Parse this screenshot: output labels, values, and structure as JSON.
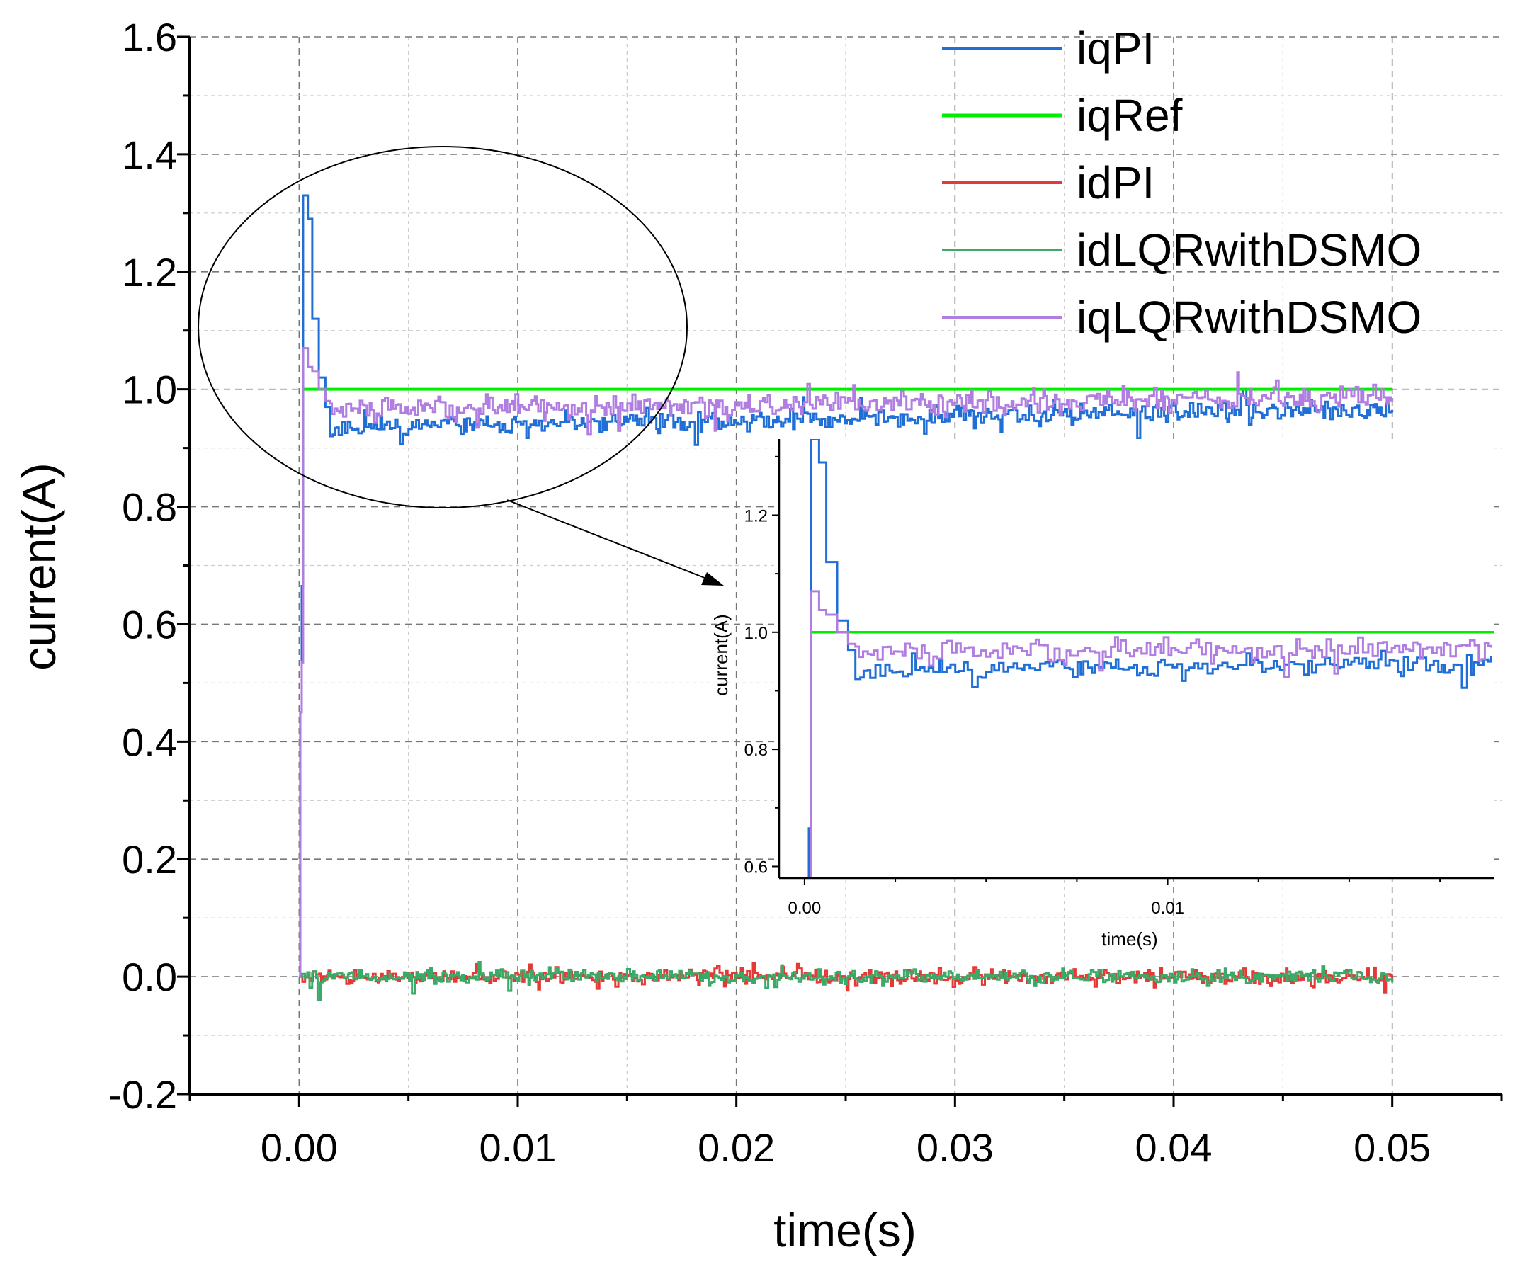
{
  "chart_data": [
    {
      "type": "line",
      "name": "main",
      "xlabel": "time(s)",
      "ylabel": "current(A)",
      "xlim": [
        -0.005,
        0.055
      ],
      "ylim": [
        -0.2,
        1.6
      ],
      "xticks": [
        "0.00",
        "0.01",
        "0.02",
        "0.03",
        "0.04",
        "0.05"
      ],
      "xtick_values": [
        0.0,
        0.01,
        0.02,
        0.03,
        0.04,
        0.05
      ],
      "yticks": [
        "-0.2",
        "0.0",
        "0.2",
        "0.4",
        "0.6",
        "0.8",
        "1.0",
        "1.2",
        "1.4",
        "1.6"
      ],
      "ytick_values": [
        -0.2,
        0.0,
        0.2,
        0.4,
        0.6,
        0.8,
        1.0,
        1.2,
        1.4,
        1.6
      ],
      "grid": true,
      "legend_position": "top-right",
      "annotation": "ellipse around 0.00-0.02 s near 1.0 A with arrow to zoomed inset",
      "series": [
        {
          "name": "iqPI",
          "color": "#1f6fd6",
          "x_range": [
            0.0,
            0.05
          ],
          "peak": {
            "x": 0.0002,
            "y": 1.33
          },
          "steady_mean": 0.955,
          "noise": 0.03
        },
        {
          "name": "iqRef",
          "color": "#00ee00",
          "x_range": [
            0.0002,
            0.05
          ],
          "value": 1.0
        },
        {
          "name": "idPI",
          "color": "#e53935",
          "x_range": [
            0.0,
            0.05
          ],
          "steady_mean": 0.0,
          "noise": 0.04
        },
        {
          "name": "idLQRwithDSMO",
          "color": "#3aaa68",
          "x_range": [
            0.0,
            0.05
          ],
          "steady_mean": 0.0,
          "noise": 0.04
        },
        {
          "name": "iqLQRwithDSMO",
          "color": "#b07ee0",
          "x_range": [
            0.0,
            0.05
          ],
          "peak": {
            "x": 0.0002,
            "y": 1.07
          },
          "steady_mean": 0.975,
          "noise": 0.035
        }
      ]
    },
    {
      "type": "line",
      "name": "inset",
      "xlabel": "time(s)",
      "ylabel": "current(A)",
      "xlim": [
        -0.0007,
        0.019
      ],
      "ylim": [
        0.58,
        1.33
      ],
      "xticks": [
        "0.00",
        "0.01"
      ],
      "xtick_values": [
        0.0,
        0.01
      ],
      "yticks": [
        "0.6",
        "0.8",
        "1.0",
        "1.2"
      ],
      "ytick_values": [
        0.6,
        0.8,
        1.0,
        1.2
      ],
      "grid": false,
      "series": [
        {
          "name": "iqPI",
          "color": "#1f6fd6"
        },
        {
          "name": "iqRef",
          "color": "#00ee00",
          "value": 1.0
        },
        {
          "name": "iqLQRwithDSMO",
          "color": "#b07ee0"
        }
      ]
    }
  ]
}
